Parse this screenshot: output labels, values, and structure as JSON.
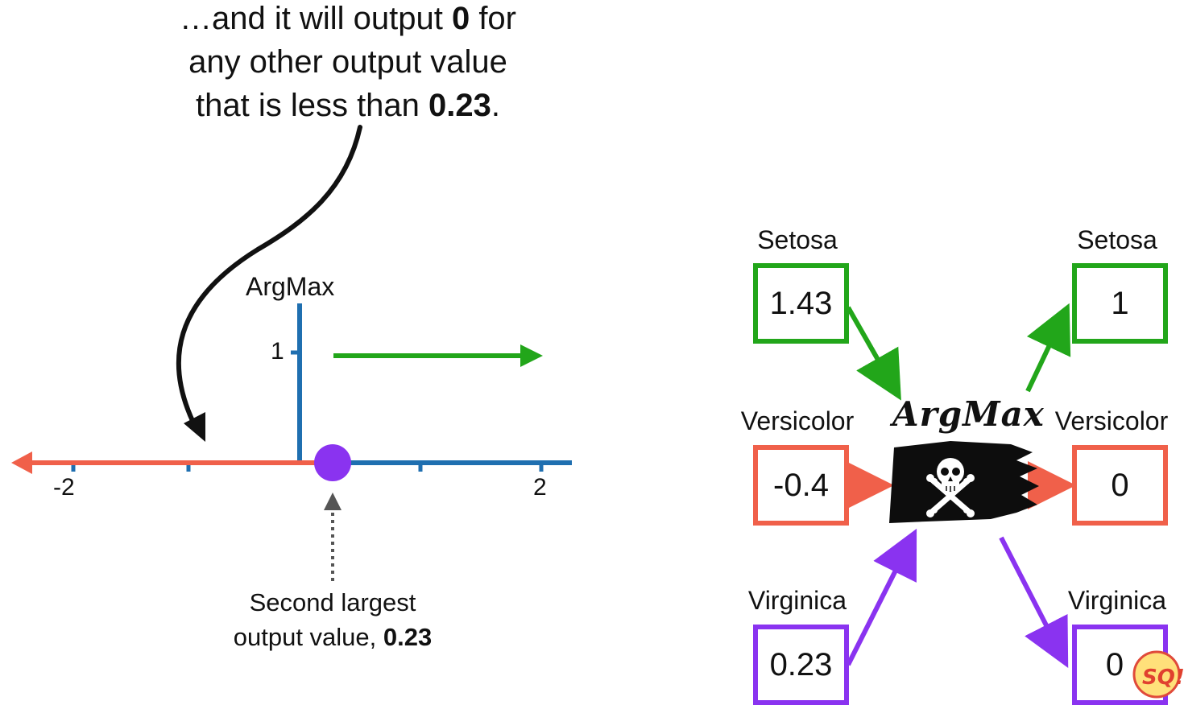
{
  "callout": {
    "line1_pre": "…and it will output ",
    "line1_bold": "0",
    "line1_post": " for",
    "line2": "any other output value",
    "line3_pre": "that is less than ",
    "line3_bold": "0.23",
    "line3_post": "."
  },
  "chart_data": {
    "type": "line",
    "title": "",
    "ylabel": "ArgMax",
    "xlabel": "",
    "x_ticks": [
      "-2",
      "2"
    ],
    "y_ticks": [
      "1"
    ],
    "series": [
      {
        "segment": "lower",
        "y": 0,
        "x_range": [
          "-inf",
          0.23
        ],
        "color": "#f0604a"
      },
      {
        "segment": "upper",
        "y": 1,
        "x_range": [
          0.23,
          "inf"
        ],
        "color": "#22a61a"
      }
    ],
    "highlight_point": {
      "x": 0.23,
      "y": 0,
      "color": "#8a33f0"
    }
  },
  "caption": {
    "line1": "Second largest",
    "line2_pre": "output value, ",
    "line2_bold": "0.23"
  },
  "argmax_block": {
    "title": "ArgMax",
    "inputs": [
      {
        "label": "Setosa",
        "value": "1.43",
        "color": "#22a61a"
      },
      {
        "label": "Versicolor",
        "value": "-0.4",
        "color": "#f0604a"
      },
      {
        "label": "Virginica",
        "value": "0.23",
        "color": "#8a33f0"
      }
    ],
    "outputs": [
      {
        "label": "Setosa",
        "value": "1",
        "color": "#22a61a"
      },
      {
        "label": "Versicolor",
        "value": "0",
        "color": "#f0604a"
      },
      {
        "label": "Virginica",
        "value": "0",
        "color": "#8a33f0"
      }
    ]
  },
  "colors": {
    "axis": "#1f6fb0",
    "green": "#22a61a",
    "red": "#f0604a",
    "purple": "#8a33f0",
    "dark": "#111111",
    "gray": "#555555"
  },
  "icons": {
    "flag": "pirate-flag-icon",
    "logo": "sq-logo-icon"
  }
}
